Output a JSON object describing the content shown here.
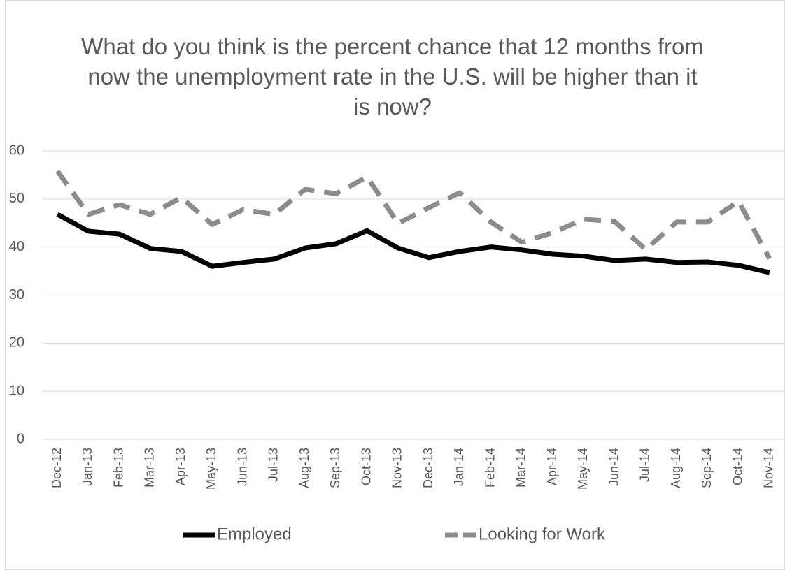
{
  "chart_data": {
    "type": "line",
    "title": "What do you think is the percent chance that 12 months from now the unemployment rate in the U.S. will be higher than it is now?",
    "categories": [
      "Dec-12",
      "Jan-13",
      "Feb-13",
      "Mar-13",
      "Apr-13",
      "May-13",
      "Jun-13",
      "Jul-13",
      "Aug-13",
      "Sep-13",
      "Oct-13",
      "Nov-13",
      "Dec-13",
      "Jan-14",
      "Feb-14",
      "Mar-14",
      "Apr-14",
      "May-14",
      "Jun-14",
      "Jul-14",
      "Aug-14",
      "Sep-14",
      "Oct-14",
      "Nov-14"
    ],
    "series": [
      {
        "name": "Employed",
        "color": "#000000",
        "dash": "solid",
        "values": [
          46.8,
          43.3,
          42.7,
          39.7,
          39.1,
          36.0,
          36.8,
          37.5,
          39.8,
          40.7,
          43.4,
          39.8,
          37.8,
          39.1,
          40.0,
          39.4,
          38.5,
          38.1,
          37.2,
          37.5,
          36.8,
          36.9,
          36.2,
          34.7
        ]
      },
      {
        "name": "Looking for Work",
        "color": "#8c8c8c",
        "dash": "dashed",
        "values": [
          55.8,
          46.8,
          48.8,
          46.8,
          50.3,
          44.7,
          47.8,
          46.8,
          52.0,
          51.1,
          54.6,
          44.9,
          48.2,
          51.3,
          45.2,
          41.0,
          43.0,
          45.8,
          45.3,
          39.5,
          45.2,
          45.2,
          49.5,
          37.6
        ]
      }
    ],
    "ylim": [
      0,
      60
    ],
    "yticks": [
      0,
      10,
      20,
      30,
      40,
      50,
      60
    ],
    "grid": true,
    "legend": "bottom"
  }
}
